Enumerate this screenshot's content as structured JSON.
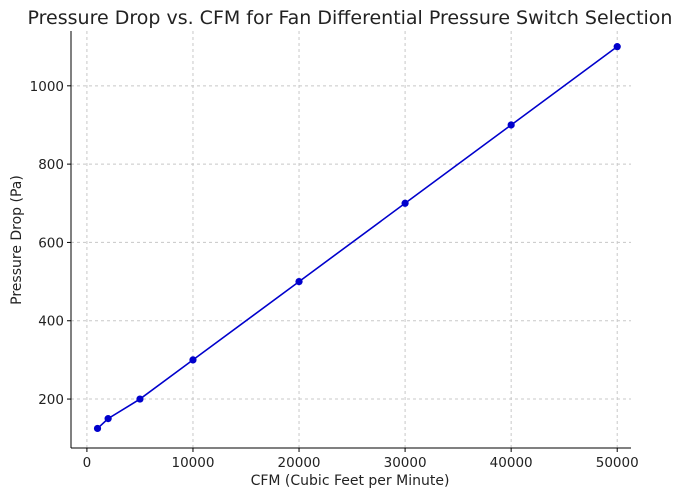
{
  "chart_data": {
    "type": "line",
    "title": "Pressure Drop vs. CFM for Fan Differential Pressure Switch Selection",
    "xlabel": "CFM (Cubic Feet per Minute)",
    "ylabel": "Pressure Drop (Pa)",
    "xlim": [
      -1500,
      51300
    ],
    "ylim": [
      75,
      1140
    ],
    "xticks": [
      0,
      10000,
      20000,
      30000,
      40000,
      50000
    ],
    "yticks": [
      200,
      400,
      600,
      800,
      1000
    ],
    "grid": true,
    "legend": "none",
    "series": [
      {
        "color": "#0000cc",
        "x": [
          1000,
          2000,
          5000,
          10000,
          20000,
          30000,
          40000,
          50000
        ],
        "y": [
          125,
          150,
          200,
          300,
          500,
          700,
          900,
          1100
        ]
      }
    ]
  }
}
